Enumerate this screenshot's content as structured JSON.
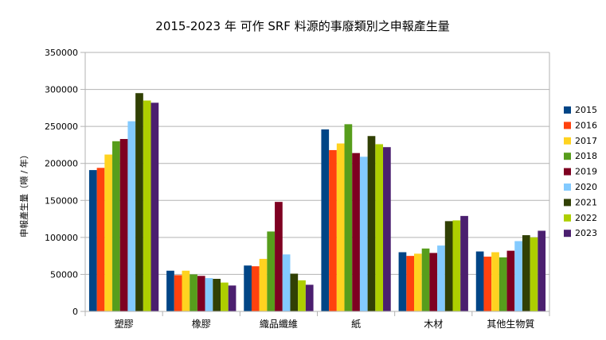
{
  "chart_data": {
    "type": "bar",
    "title": "2015-2023 年 可作 SRF 料源的事廢類別之申報產生量",
    "xlabel": "",
    "ylabel": "申報產生量（噸 / 年）",
    "ylim": [
      0,
      350000
    ],
    "yticks": [
      "0",
      "50000",
      "100000",
      "150000",
      "200000",
      "250000",
      "300000",
      "350000"
    ],
    "grid": true,
    "legend_position": "right",
    "categories": [
      "塑膠",
      "橡膠",
      "織品纖維",
      "紙",
      "木材",
      "其他生物質"
    ],
    "series": [
      {
        "name": "2015",
        "color": "#004586",
        "values": [
          191000,
          55000,
          62000,
          246000,
          80000,
          81000
        ]
      },
      {
        "name": "2016",
        "color": "#ff420e",
        "values": [
          194000,
          49000,
          61000,
          218000,
          75000,
          74000
        ]
      },
      {
        "name": "2017",
        "color": "#ffd320",
        "values": [
          212000,
          55000,
          71000,
          227000,
          78000,
          80000
        ]
      },
      {
        "name": "2018",
        "color": "#579d1c",
        "values": [
          230000,
          50000,
          108000,
          253000,
          85000,
          73000
        ]
      },
      {
        "name": "2019",
        "color": "#7e0021",
        "values": [
          233000,
          48000,
          148000,
          214000,
          79000,
          82000
        ]
      },
      {
        "name": "2020",
        "color": "#83caff",
        "values": [
          257000,
          45000,
          77000,
          209000,
          89000,
          95000
        ]
      },
      {
        "name": "2021",
        "color": "#314004",
        "values": [
          295000,
          44000,
          51000,
          237000,
          122000,
          103000
        ]
      },
      {
        "name": "2022",
        "color": "#aecf00",
        "values": [
          285000,
          39000,
          42000,
          226000,
          123000,
          100000
        ]
      },
      {
        "name": "2023",
        "color": "#4b1f6f",
        "values": [
          282000,
          35000,
          36000,
          222000,
          129000,
          109000
        ]
      }
    ]
  }
}
